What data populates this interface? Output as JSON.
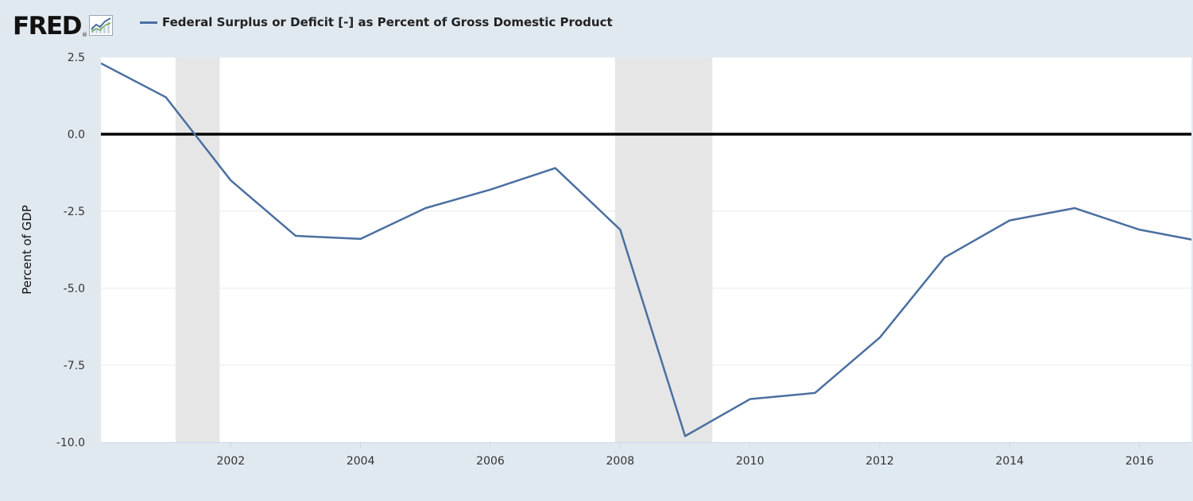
{
  "header": {
    "logo_text": "FRED",
    "logo_reg": "®"
  },
  "colors": {
    "series": "#4b6fa0",
    "recession": "#e6e6e6",
    "zero_line": "#000000",
    "background": "#e1e9f0",
    "plot_background": "#ffffff",
    "grid": "#e8e8e8"
  },
  "chart_data": {
    "type": "line",
    "title": "",
    "xlabel": "",
    "ylabel": "Percent of GDP",
    "xlim": [
      2000,
      2016.8
    ],
    "ylim": [
      -10,
      2.5
    ],
    "grid": true,
    "legend_position": "top-left",
    "x_ticks": [
      2002,
      2004,
      2006,
      2008,
      2010,
      2012,
      2014,
      2016
    ],
    "x_tick_labels": [
      "2002",
      "2004",
      "2006",
      "2008",
      "2010",
      "2012",
      "2014",
      "2016"
    ],
    "y_ticks": [
      2.5,
      0,
      -2.5,
      -5,
      -7.5,
      -10
    ],
    "y_tick_labels": [
      "2.5",
      "0.0",
      "-2.5",
      "-5.0",
      "-7.5",
      "-10.0"
    ],
    "reference_line": 0,
    "recessions": [
      [
        2001.15,
        2001.83
      ],
      [
        2007.92,
        2009.42
      ]
    ],
    "series": [
      {
        "name": "Federal Surplus or Deficit [-] as Percent of Gross Domestic Product",
        "x": [
          2000,
          2001,
          2002,
          2003,
          2004,
          2005,
          2006,
          2007,
          2008,
          2009,
          2010,
          2011,
          2012,
          2013,
          2014,
          2015,
          2016,
          2017
        ],
        "y": [
          2.3,
          1.2,
          -1.5,
          -3.3,
          -3.4,
          -2.4,
          -1.8,
          -1.1,
          -3.1,
          -9.8,
          -8.6,
          -8.4,
          -6.6,
          -4.0,
          -2.8,
          -2.4,
          -3.1,
          -3.5
        ]
      }
    ]
  }
}
